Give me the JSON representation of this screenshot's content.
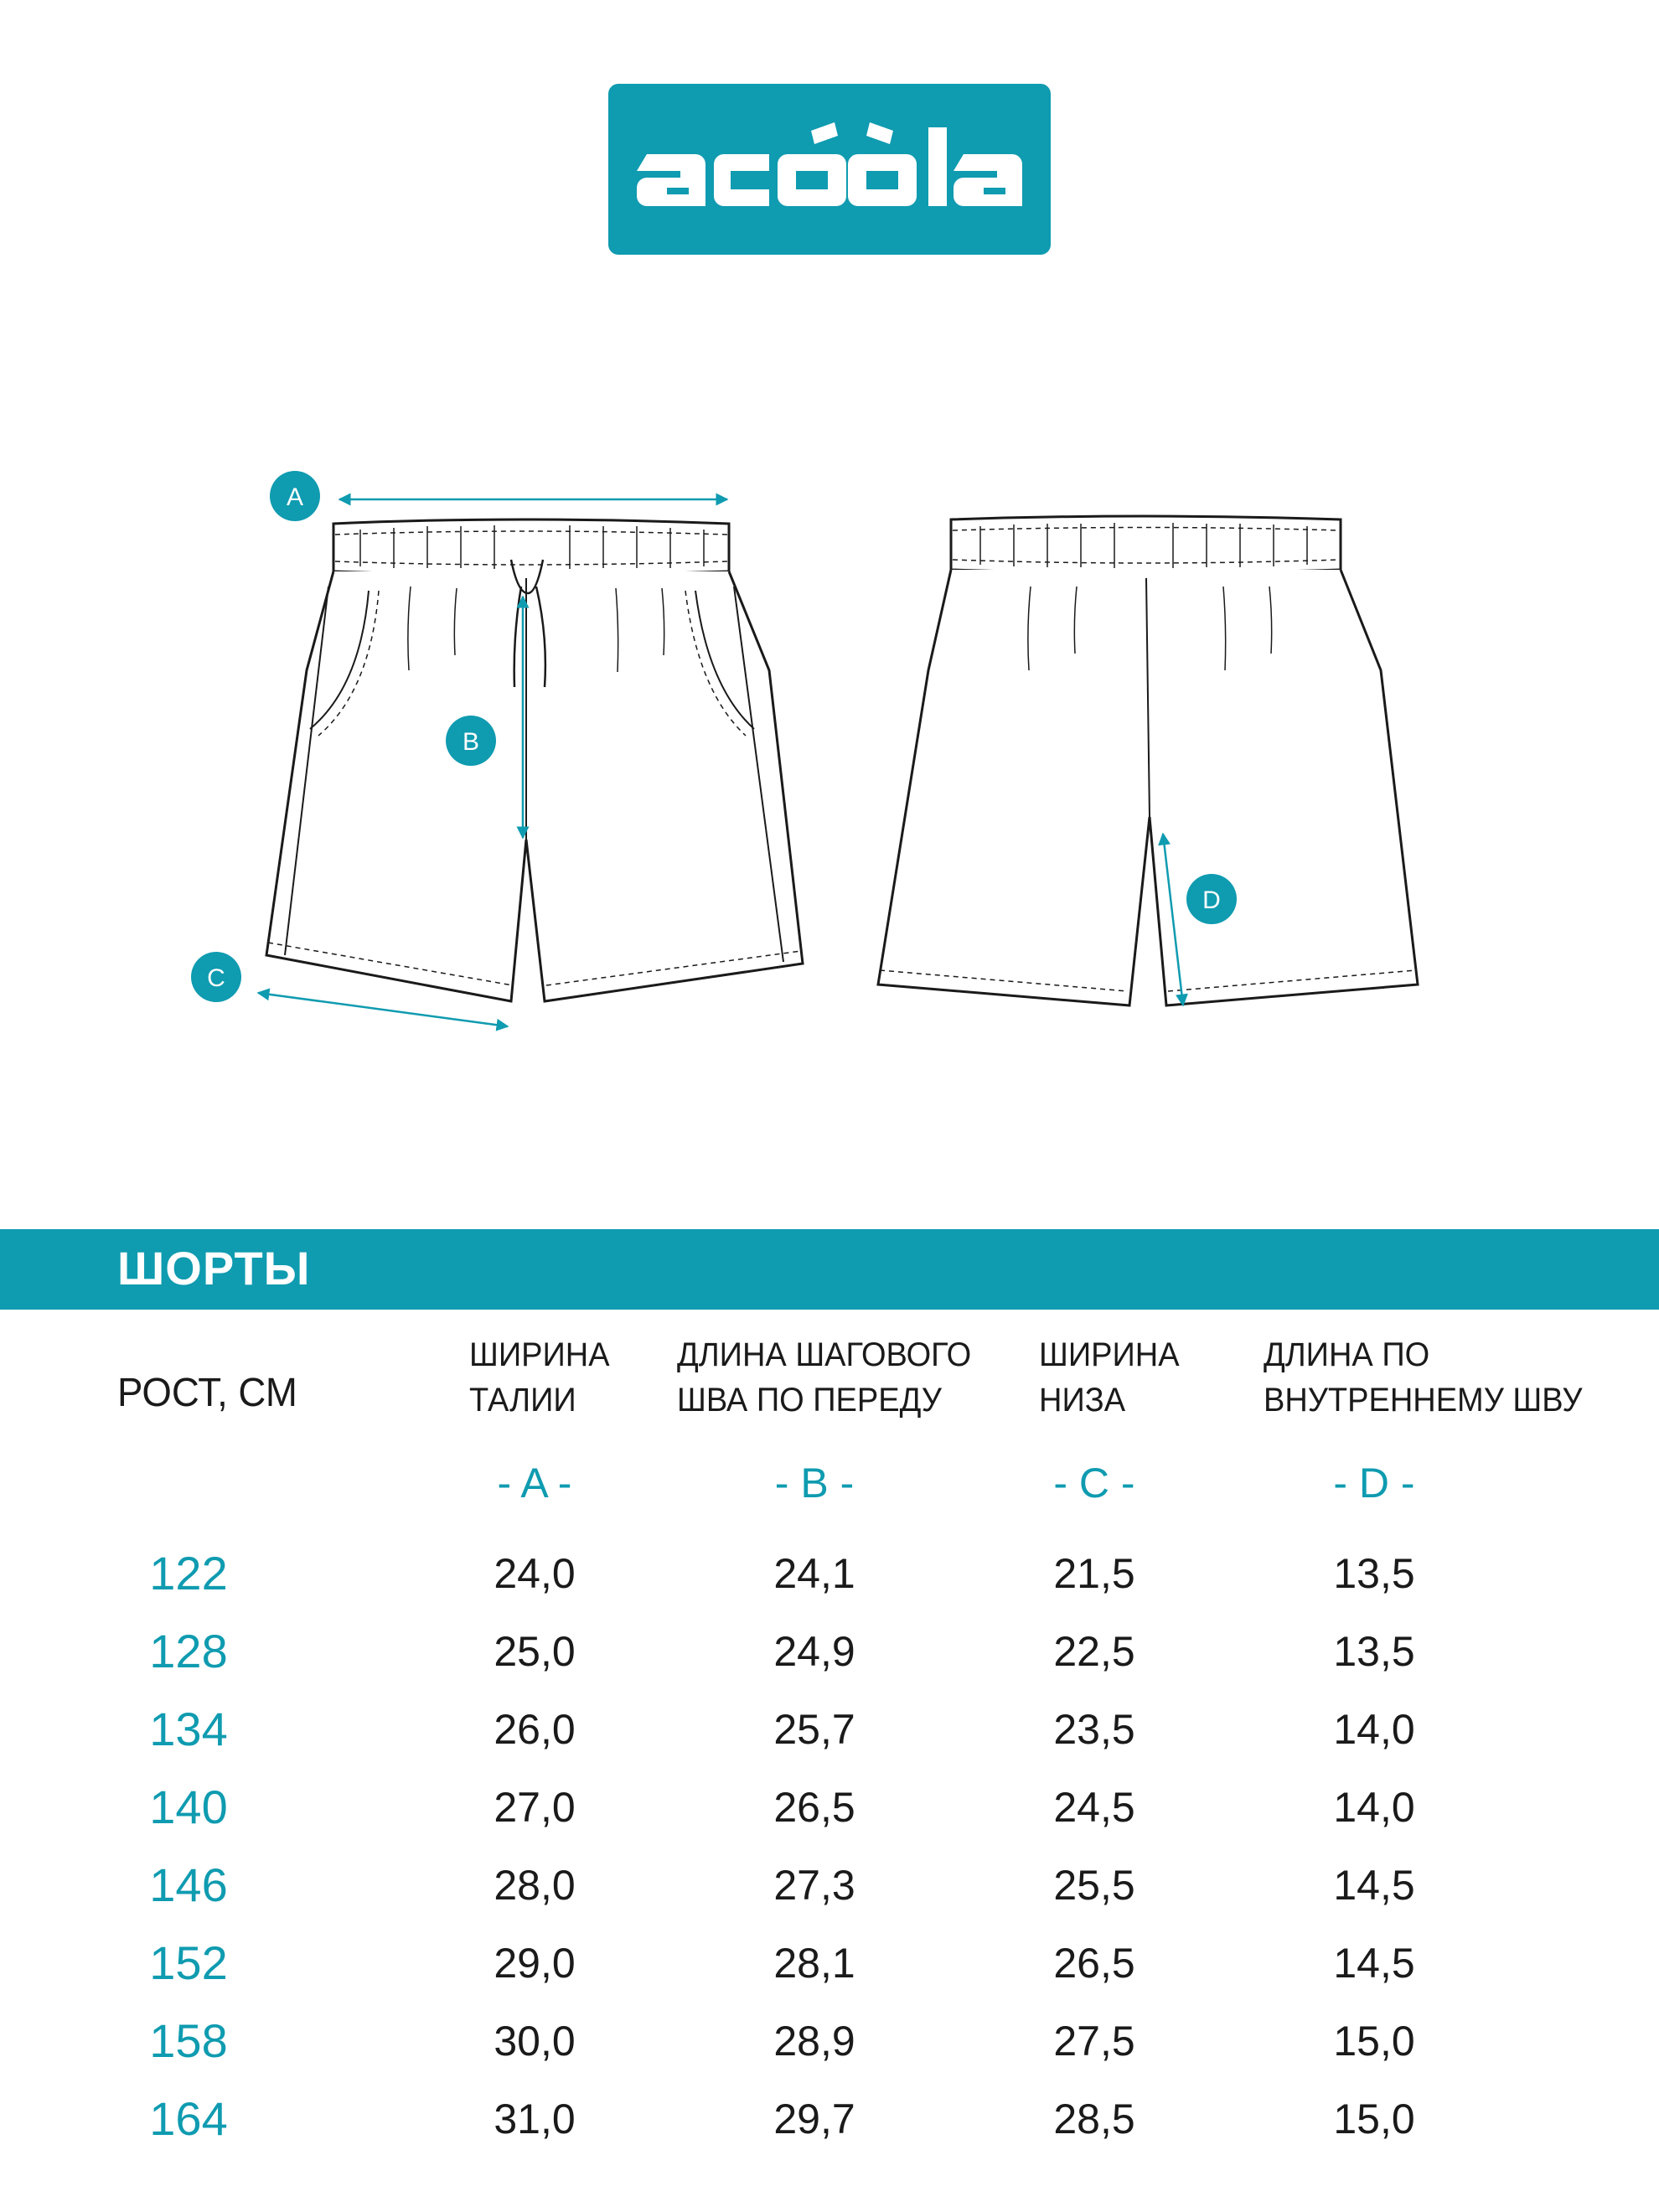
{
  "brand": {
    "name": "acoola",
    "color": "#0f9bb0"
  },
  "diagram": {
    "markers": [
      "A",
      "B",
      "C",
      "D"
    ],
    "accent_color": "#0f9bb0",
    "views": [
      "front-view",
      "back-view"
    ]
  },
  "table": {
    "title": "ШОРТЫ",
    "height_header": "РОСТ, СМ",
    "columns": [
      {
        "label": "ШИРИНА\nТАЛИИ",
        "code": "- A -"
      },
      {
        "label": "ДЛИНА ШАГОВОГО\nШВА ПО ПЕРЕДУ",
        "code": "- B -"
      },
      {
        "label": "ШИРИНА\nНИЗА",
        "code": "- C -"
      },
      {
        "label": "ДЛИНА ПО\nВНУТРЕННЕМУ ШВУ",
        "code": "- D -"
      }
    ],
    "rows": [
      {
        "height": "122",
        "values": [
          "24,0",
          "24,1",
          "21,5",
          "13,5"
        ]
      },
      {
        "height": "128",
        "values": [
          "25,0",
          "24,9",
          "22,5",
          "13,5"
        ]
      },
      {
        "height": "134",
        "values": [
          "26,0",
          "25,7",
          "23,5",
          "14,0"
        ]
      },
      {
        "height": "140",
        "values": [
          "27,0",
          "26,5",
          "24,5",
          "14,0"
        ]
      },
      {
        "height": "146",
        "values": [
          "28,0",
          "27,3",
          "25,5",
          "14,5"
        ]
      },
      {
        "height": "152",
        "values": [
          "29,0",
          "28,1",
          "26,5",
          "14,5"
        ]
      },
      {
        "height": "158",
        "values": [
          "30,0",
          "28,9",
          "27,5",
          "15,0"
        ]
      },
      {
        "height": "164",
        "values": [
          "31,0",
          "29,7",
          "28,5",
          "15,0"
        ]
      }
    ]
  }
}
